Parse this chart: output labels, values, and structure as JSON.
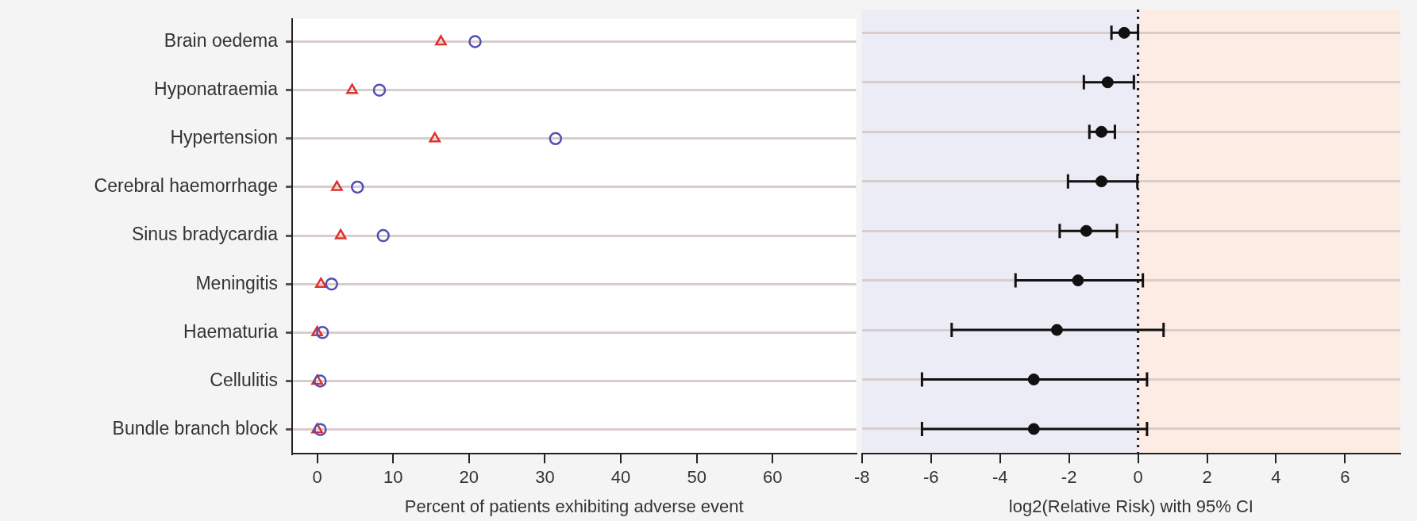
{
  "chart_data": [
    {
      "type": "scatter",
      "orientation": "horizontal",
      "categories": [
        "Brain oedema",
        "Hyponatraemia",
        "Hypertension",
        "Cerebral haemorrhage",
        "Sinus bradycardia",
        "Meningitis",
        "Haematuria",
        "Cellulitis",
        "Bundle branch block"
      ],
      "series": [
        {
          "color": "#5050b4",
          "marker": "circle",
          "values": [
            20.8,
            8.2,
            31.4,
            5.3,
            8.7,
            1.9,
            0.7,
            0.4,
            0.4
          ]
        },
        {
          "color": "#e0302a",
          "marker": "triangle",
          "values": [
            16.3,
            4.6,
            15.5,
            2.6,
            3.1,
            0.5,
            0,
            0,
            0
          ]
        }
      ],
      "xlabel": "Percent of patients exhibiting adverse event",
      "xlim": [
        -3.3,
        71
      ],
      "xticks": [
        0,
        10,
        20,
        30,
        40,
        50,
        60
      ],
      "grid": "y"
    },
    {
      "type": "scatter",
      "orientation": "horizontal",
      "categories": [
        null,
        null,
        null,
        null,
        null,
        null,
        null,
        null,
        null
      ],
      "series": [
        {
          "color": "#111111",
          "marker": "circle",
          "values": [
            -0.4,
            -0.88,
            -1.06,
            -1.06,
            -1.5,
            -1.74,
            -2.35,
            -3.02,
            -3.02
          ],
          "errors": [
            [
              -0.77,
              0
            ],
            [
              -1.57,
              -0.12
            ],
            [
              -1.41,
              -0.67
            ],
            [
              -2.03,
              -0.02
            ],
            [
              -2.27,
              -0.61
            ],
            [
              -3.55,
              0.14
            ],
            [
              -5.4,
              0.74
            ],
            [
              -6.26,
              0.26
            ],
            [
              -6.26,
              0.26
            ]
          ]
        }
      ],
      "xlabel": "log2(Relative Risk) with 95% CI",
      "xlim": [
        -8,
        7.6
      ],
      "xticks": [
        -8,
        -6,
        -4,
        -2,
        0,
        2,
        4,
        6
      ],
      "grid": "y",
      "tick_labels": "x",
      "bands": [
        {
          "axis": "x",
          "from": -8,
          "to": 0,
          "color": "#ececf6"
        },
        {
          "axis": "x",
          "from": 0,
          "to": 7.6,
          "color": "#fcece4"
        }
      ],
      "ref_lines": [
        {
          "axis": "x",
          "value": 0,
          "line_style": "dotted",
          "color": "#222222"
        }
      ]
    }
  ]
}
